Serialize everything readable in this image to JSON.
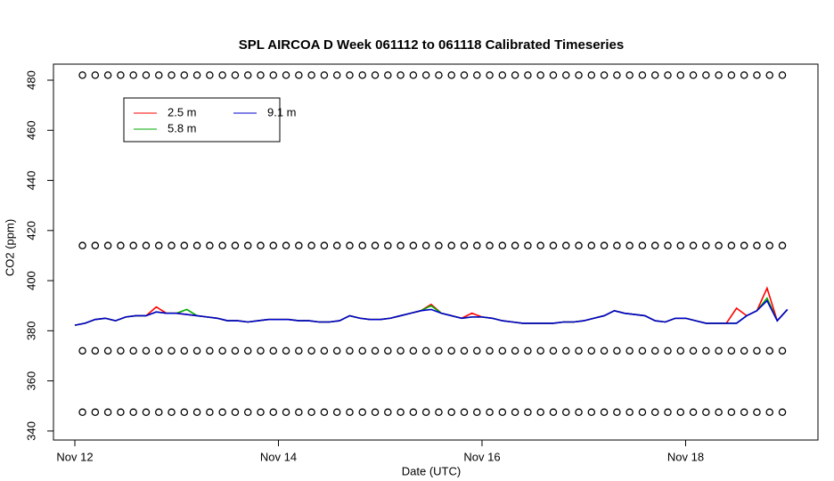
{
  "chart_data": {
    "type": "line",
    "title": "SPL AIRCOA D  Week 061112 to 061118  Calibrated Timeseries",
    "x_label": "Date (UTC)",
    "y_label": "CO2 (ppm)",
    "xlim": [
      11.79,
      19.3
    ],
    "ylim": [
      336.4,
      486.4
    ],
    "xticks": [
      {
        "value": 12,
        "label": "Nov 12"
      },
      {
        "value": 14,
        "label": "Nov 14"
      },
      {
        "value": 16,
        "label": "Nov 16"
      },
      {
        "value": 18,
        "label": "Nov 18"
      }
    ],
    "yticks": [
      340,
      360,
      380,
      400,
      420,
      440,
      460,
      480
    ],
    "legend": "top-left",
    "x": [
      12.0,
      12.1,
      12.2,
      12.3,
      12.4,
      12.5,
      12.6,
      12.7,
      12.8,
      12.9,
      13.0,
      13.1,
      13.2,
      13.3,
      13.4,
      13.5,
      13.6,
      13.7,
      13.8,
      13.9,
      14.0,
      14.1,
      14.2,
      14.3,
      14.4,
      14.5,
      14.6,
      14.7,
      14.8,
      14.9,
      15.0,
      15.1,
      15.2,
      15.3,
      15.4,
      15.5,
      15.6,
      15.7,
      15.8,
      15.9,
      16.0,
      16.1,
      16.2,
      16.3,
      16.4,
      16.5,
      16.6,
      16.7,
      16.8,
      16.9,
      17.0,
      17.1,
      17.2,
      17.3,
      17.4,
      17.5,
      17.6,
      17.7,
      17.8,
      17.9,
      18.0,
      18.1,
      18.2,
      18.3,
      18.4,
      18.5,
      18.6,
      18.7,
      18.8,
      18.9,
      19.0
    ],
    "series": [
      {
        "name": "2.5 m",
        "color": "#ff0000",
        "values": [
          382.2,
          383,
          384.5,
          385,
          384,
          385.5,
          386,
          386,
          389.5,
          387,
          387,
          386.5,
          386,
          385.5,
          385,
          384,
          384,
          383.5,
          384,
          384.5,
          384.5,
          384.5,
          384,
          384,
          383.5,
          383.5,
          384,
          386,
          385,
          384.5,
          384.5,
          385,
          386,
          387,
          388,
          390.5,
          387,
          386,
          385,
          387,
          385.5,
          385,
          384,
          383.5,
          383,
          383,
          383,
          383,
          383.5,
          383.5,
          384,
          385,
          386,
          388,
          387,
          386.5,
          386,
          384,
          383.5,
          385,
          385,
          384,
          383,
          383,
          383,
          389,
          386,
          388,
          397,
          384,
          388.5
        ]
      },
      {
        "name": "5.8 m",
        "color": "#00aa00",
        "values": [
          382.2,
          383,
          384.5,
          385,
          384,
          385.5,
          386,
          386,
          387.5,
          387,
          387,
          388.5,
          386,
          385.5,
          385,
          384,
          384,
          383.5,
          384,
          384.5,
          384.5,
          384.5,
          384,
          384,
          383.5,
          383.5,
          384,
          386,
          385,
          384.5,
          384.5,
          385,
          386,
          387,
          388,
          390,
          387,
          386,
          385,
          385.5,
          385.5,
          385,
          384,
          383.5,
          383,
          383,
          383,
          383,
          383.5,
          383.5,
          384,
          385,
          386,
          388,
          387,
          386.5,
          386,
          384,
          383.5,
          385,
          385,
          384,
          383,
          383,
          383,
          383,
          386,
          388,
          393,
          384,
          388.5
        ]
      },
      {
        "name": "9.1 m",
        "color": "#0000cc",
        "values": [
          382.2,
          383,
          384.5,
          385,
          384,
          385.5,
          386,
          386,
          387.5,
          387,
          387,
          386.5,
          386,
          385.5,
          385,
          384,
          384,
          383.5,
          384,
          384.5,
          384.5,
          384.5,
          384,
          384,
          383.5,
          383.5,
          384,
          386,
          385,
          384.5,
          384.5,
          385,
          386,
          387,
          388,
          388.5,
          387,
          386,
          385,
          385.5,
          385.5,
          385,
          384,
          383.5,
          383,
          383,
          383,
          383,
          383.5,
          383.5,
          384,
          385,
          386,
          388,
          387,
          386.5,
          386,
          384,
          383.5,
          385,
          385,
          384,
          383,
          383,
          383,
          383,
          386,
          388,
          392,
          384,
          388.5
        ]
      }
    ],
    "points": {
      "x": [
        12.075,
        12.2,
        12.325,
        12.45,
        12.575,
        12.7,
        12.825,
        12.95,
        13.075,
        13.2,
        13.325,
        13.45,
        13.575,
        13.7,
        13.825,
        13.95,
        14.075,
        14.2,
        14.325,
        14.45,
        14.575,
        14.7,
        14.825,
        14.95,
        15.075,
        15.2,
        15.325,
        15.45,
        15.575,
        15.7,
        15.825,
        15.95,
        16.075,
        16.2,
        16.325,
        16.45,
        16.575,
        16.7,
        16.825,
        16.95,
        17.075,
        17.2,
        17.325,
        17.45,
        17.575,
        17.7,
        17.825,
        17.95,
        18.075,
        18.2,
        18.325,
        18.45,
        18.575,
        18.7,
        18.825,
        18.95
      ],
      "rows": [
        [
          482,
          482,
          482,
          482,
          482,
          482,
          482,
          482,
          482,
          482,
          482,
          482,
          482,
          482,
          482,
          482,
          482,
          482,
          482,
          482,
          482,
          482,
          482,
          482,
          482,
          482,
          482,
          482,
          482,
          482,
          482,
          482,
          482,
          482,
          482,
          482,
          482,
          482,
          482,
          482,
          482,
          482,
          482,
          482,
          482,
          482,
          482,
          482,
          482,
          482,
          482,
          482,
          482,
          482,
          482,
          482
        ],
        [
          414,
          414,
          414,
          414,
          414,
          414,
          414,
          414,
          414,
          414,
          414,
          414,
          414,
          414,
          414,
          414,
          414,
          414,
          414,
          414,
          414,
          414,
          414,
          414,
          414,
          414,
          414,
          414,
          414,
          414,
          414,
          414,
          414,
          414,
          414,
          414,
          414,
          414,
          414,
          414,
          414,
          414,
          414,
          414,
          414,
          414,
          414,
          414,
          414,
          414,
          414,
          414,
          414,
          414,
          414,
          414
        ],
        [
          372,
          372,
          372,
          372,
          372,
          372,
          372,
          372,
          372,
          372,
          372,
          372,
          372,
          372,
          372,
          372,
          372,
          372,
          372,
          372,
          372,
          372,
          372,
          372,
          372,
          372,
          372,
          372,
          372,
          372,
          372,
          372,
          372,
          372,
          372,
          372,
          372,
          372,
          372,
          372,
          372,
          372,
          372,
          372,
          372,
          372,
          372,
          372,
          372,
          372,
          372,
          372,
          372,
          372,
          372,
          372
        ],
        [
          347.5,
          347.5,
          347.5,
          347.5,
          347.5,
          347.5,
          347.5,
          347.5,
          347.5,
          347.5,
          347.5,
          347.5,
          347.5,
          347.5,
          347.5,
          347.5,
          347.5,
          347.5,
          347.5,
          347.5,
          347.5,
          347.5,
          347.5,
          347.5,
          347.5,
          347.5,
          347.5,
          347.5,
          347.5,
          347.5,
          347.5,
          347.5,
          347.5,
          347.5,
          347.5,
          347.5,
          347.5,
          347.5,
          347.5,
          347.5,
          347.5,
          347.5,
          347.5,
          347.5,
          347.5,
          347.5,
          347.5,
          347.5,
          347.5,
          347.5,
          347.5,
          347.5,
          347.5,
          347.5,
          347.5,
          347.5
        ]
      ]
    }
  }
}
